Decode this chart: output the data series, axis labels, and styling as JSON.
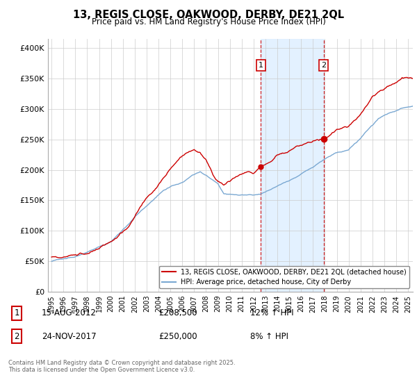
{
  "title_line1": "13, REGIS CLOSE, OAKWOOD, DERBY, DE21 2QL",
  "title_line2": "Price paid vs. HM Land Registry's House Price Index (HPI)",
  "ylabel_values": [
    0,
    50000,
    100000,
    150000,
    200000,
    250000,
    300000,
    350000,
    400000
  ],
  "ylim": [
    0,
    415000
  ],
  "xlim_start": 1994.7,
  "xlim_end": 2025.4,
  "marker1_x": 2012.62,
  "marker1_y": 208500,
  "marker1_label": "1",
  "marker2_x": 2017.9,
  "marker2_y": 250000,
  "marker2_label": "2",
  "legend_line1": "13, REGIS CLOSE, OAKWOOD, DERBY, DE21 2QL (detached house)",
  "legend_line2": "HPI: Average price, detached house, City of Derby",
  "annotation1_box": "1",
  "annotation1_date": "15-AUG-2012",
  "annotation1_price": "£208,500",
  "annotation1_hpi": "12% ↑ HPI",
  "annotation2_box": "2",
  "annotation2_date": "24-NOV-2017",
  "annotation2_price": "£250,000",
  "annotation2_hpi": "8% ↑ HPI",
  "footnote": "Contains HM Land Registry data © Crown copyright and database right 2025.\nThis data is licensed under the Open Government Licence v3.0.",
  "color_red": "#cc0000",
  "color_blue": "#7aa8d2",
  "color_shade": "#ddeeff",
  "background_color": "#ffffff",
  "grid_color": "#cccccc"
}
